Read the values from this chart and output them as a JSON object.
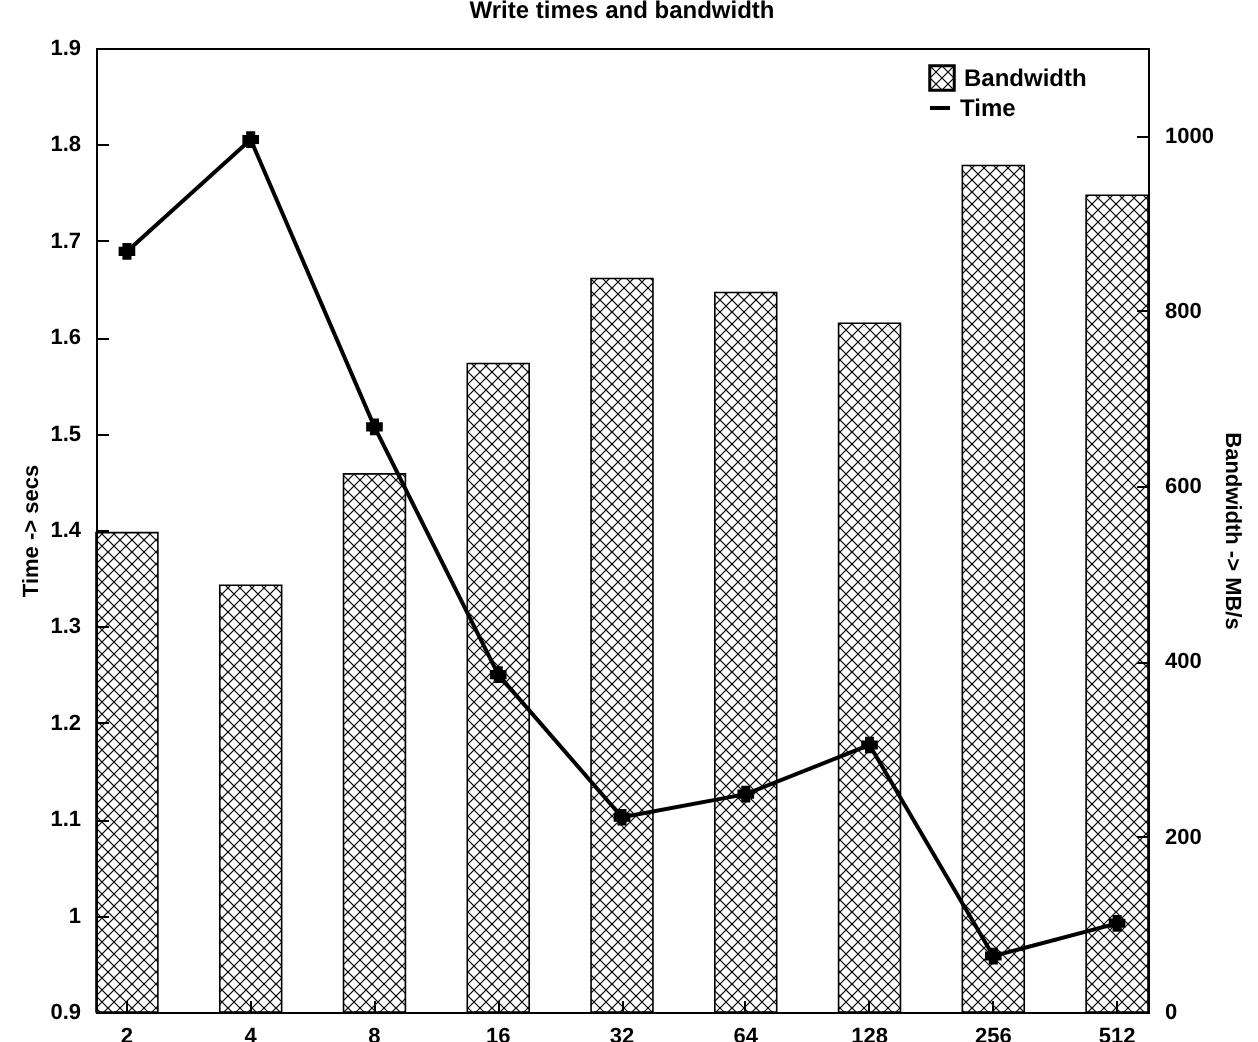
{
  "chart_data": {
    "type": "bar",
    "title": "Write times and bandwidth",
    "ylabel": "Time -> secs",
    "y2label": "Bandwidth -> MB/s",
    "categories": [
      "2",
      "4",
      "8",
      "16",
      "32",
      "64",
      "128",
      "256",
      "512"
    ],
    "series": [
      {
        "name": "Bandwidth",
        "axis": "y2",
        "color": "#000000",
        "values": [
          547,
          487,
          614,
          740,
          837,
          821,
          786,
          966,
          932
        ]
      },
      {
        "name": "Time",
        "type": "line",
        "color": "#000000",
        "marker": "cross",
        "values": [
          1.689,
          1.805,
          1.507,
          1.25,
          1.102,
          1.126,
          1.177,
          0.958,
          0.992
        ]
      }
    ],
    "ylim": [
      0.9,
      1.9
    ],
    "yticks": [
      0.9,
      1,
      1.1,
      1.2,
      1.3,
      1.4,
      1.5,
      1.6,
      1.7,
      1.8,
      1.9
    ],
    "y2lim": [
      0,
      1100
    ],
    "y2ticks": [
      0,
      200,
      400,
      600,
      800,
      1000
    ],
    "legend": "top right",
    "grid": false
  }
}
